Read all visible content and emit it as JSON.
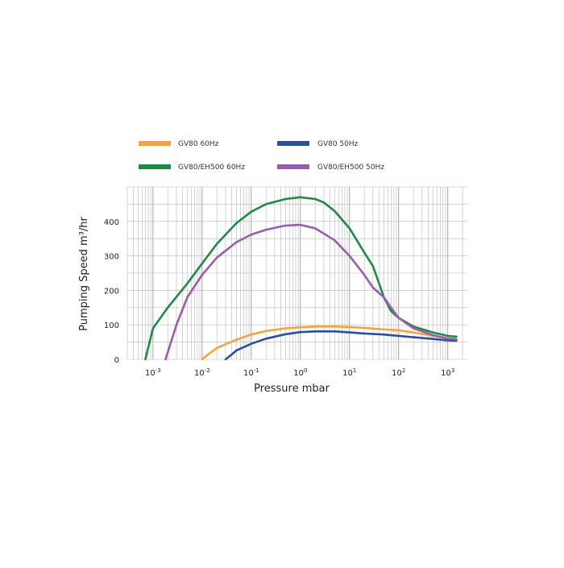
{
  "chart_data": {
    "type": "line",
    "title": "",
    "xlabel": "Pressure mbar",
    "ylabel": "Pumping Speed m³/hr",
    "xscale": "log",
    "xlim": [
      0.0003,
      2500
    ],
    "ylim": [
      0,
      500
    ],
    "grid": true,
    "legend_position": "top",
    "x_ticks": [
      {
        "value": 0.001,
        "base": "10",
        "exp": "-3"
      },
      {
        "value": 0.01,
        "base": "10",
        "exp": "-2"
      },
      {
        "value": 0.1,
        "base": "10",
        "exp": "-1"
      },
      {
        "value": 1,
        "base": "10",
        "exp": "0"
      },
      {
        "value": 10,
        "base": "10",
        "exp": "1"
      },
      {
        "value": 100,
        "base": "10",
        "exp": "2"
      },
      {
        "value": 1000,
        "base": "10",
        "exp": "3"
      }
    ],
    "y_ticks": [
      {
        "value": 0,
        "label": "0"
      },
      {
        "value": 100,
        "label": "100"
      },
      {
        "value": 200,
        "label": "200"
      },
      {
        "value": 300,
        "label": "300"
      },
      {
        "value": 400,
        "label": "400"
      }
    ],
    "series": [
      {
        "name": "GV80 60Hz",
        "color": "#f5a340",
        "x": [
          0.01,
          0.015,
          0.02,
          0.03,
          0.05,
          0.1,
          0.2,
          0.5,
          1,
          2,
          5,
          10,
          20,
          50,
          100,
          200,
          500,
          1000,
          1500
        ],
        "y": [
          0,
          20,
          33,
          44,
          57,
          72,
          82,
          90,
          93,
          95,
          95,
          94,
          91,
          87,
          84,
          78,
          68,
          61,
          59
        ]
      },
      {
        "name": "GV80 50Hz",
        "color": "#2a4fa0",
        "x": [
          0.03,
          0.04,
          0.05,
          0.1,
          0.2,
          0.5,
          1,
          2,
          5,
          10,
          20,
          50,
          100,
          200,
          500,
          1000,
          1500
        ],
        "y": [
          0,
          14,
          26,
          45,
          60,
          73,
          79,
          81,
          81,
          78,
          75,
          72,
          68,
          64,
          59,
          55,
          54
        ]
      },
      {
        "name": "GV80/EH500 60Hz",
        "color": "#1f8a45",
        "x": [
          0.0007,
          0.001,
          0.002,
          0.005,
          0.01,
          0.02,
          0.05,
          0.1,
          0.2,
          0.5,
          1,
          2,
          3,
          5,
          10,
          20,
          30,
          40,
          50,
          70,
          100,
          200,
          500,
          1000,
          1500
        ],
        "y": [
          0,
          90,
          150,
          220,
          278,
          335,
          395,
          428,
          450,
          465,
          470,
          465,
          455,
          430,
          380,
          310,
          270,
          220,
          180,
          140,
          120,
          95,
          78,
          68,
          66
        ]
      },
      {
        "name": "GV80/EH500 50Hz",
        "color": "#9b5cb0",
        "x": [
          0.0018,
          0.002,
          0.003,
          0.005,
          0.01,
          0.02,
          0.05,
          0.1,
          0.2,
          0.5,
          1,
          2,
          5,
          10,
          20,
          30,
          50,
          70,
          100,
          200,
          500,
          1000,
          1500
        ],
        "y": [
          0,
          20,
          100,
          180,
          245,
          295,
          340,
          362,
          376,
          388,
          390,
          380,
          345,
          300,
          245,
          208,
          180,
          150,
          120,
          90,
          70,
          60,
          58
        ]
      }
    ]
  }
}
